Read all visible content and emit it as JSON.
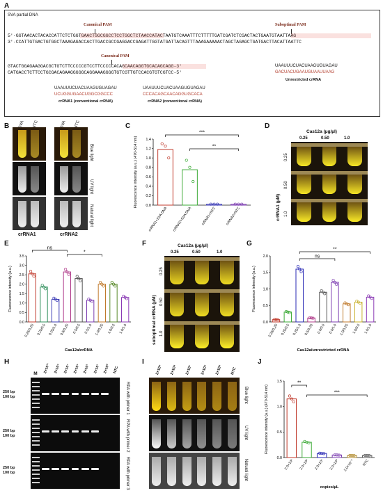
{
  "panels": {
    "A": {
      "label": "A",
      "title": "SVA partial DNA",
      "strand_top": "5'-GGTAACACTACACCATTCTCTGGTGAACTGGCGGCCTCCTGGCTCTAACCATACTAATGTCAAATTTCTTTTTGATCGATCTCGACTACTGAATGTAATTAAG",
      "strand_bottom": "3'-CCATTGTGACTGTGGCTAAAGAGACCACTTGACCGCCGAGGACCGAGATTGGTATGATTACAGTTTAAAGAAAAACTAGCTAGAGCTGATGACTTACATTAATTC",
      "strand2_top": "GTACTGGAGAAGGACGCTGTCTTCCCCCGTCCTTCCCCCACAGCAACAGGTGCACAGCAGG-3'",
      "strand2_bottom": "CATGACCTCTTCCTGCGACAGAAGGGGGCAGGAAAGGGGTGTCGTTGTCCACGTGTCGTCC-5'",
      "pam_canonical": "Canonical PAM",
      "pam_suboptimal": "Suboptimal PAM",
      "crRNA1_line1": "UAAUUUCUACUAAGUGUAGAU",
      "crRNA1_line2": "UCUGGUGAACUGGCGGCCC",
      "crRNA1_caption": "crRNA1 (conventional crRNA)",
      "crRNA2_line1": "UAAUUUCUACUAAGUGUAGAU",
      "crRNA2_line2": "CCCACAGCAACAGGUGCACA",
      "crRNA2_caption": "crRNA2 (conventional crRNA)",
      "unres_line1": "UAAUUUCUACUAAGUGUAGAU",
      "unres_line2": "GACUACUGAAUGUAAUUAAG",
      "unres_caption": "Unrestricted crRNA"
    },
    "B": {
      "label": "B",
      "tube_labels": [
        "SVA",
        "NTC",
        "SVA",
        "NTC"
      ],
      "light_labels": [
        "Blue light",
        "UV light",
        "Natural light"
      ],
      "group_labels": [
        "crRNA1",
        "crRNA2"
      ]
    },
    "C": {
      "label": "C",
      "sig_top": "***",
      "sig_mid": "**"
    },
    "D": {
      "label": "D",
      "header": "Cas12a  (µg/µl)",
      "cols": [
        "0.25",
        "0.50",
        "1.0"
      ],
      "side": "crRNA1 (µM)",
      "rows": [
        "0.25",
        "0.50",
        "1.0"
      ]
    },
    "E": {
      "label": "E",
      "sig_ns": "ns",
      "sig_star": "*"
    },
    "F": {
      "label": "F",
      "header": "Cas12a  (µg/µl)",
      "cols": [
        "0.25",
        "0.50",
        "1.0"
      ],
      "side": "suboptimal crRNA (µM)",
      "rows": [
        "0.25",
        "0.50",
        "1.0"
      ]
    },
    "G": {
      "label": "G",
      "sig_ns": "ns",
      "sig_star": "**"
    },
    "H": {
      "label": "H",
      "marker": "M",
      "lanes": [
        "2×10¹¹",
        "2×10⁹",
        "2×10⁷",
        "2×10⁵",
        "2×10³",
        "2×10¹",
        "2×10⁰",
        "NTC"
      ],
      "bp250": "250 bp",
      "bp100": "100 bp",
      "row_labels": [
        "RPA with primer 1",
        "RPA with primer 2",
        "RPA with primer 3"
      ]
    },
    "I": {
      "label": "I",
      "lanes": [
        "2×10⁹",
        "2×10⁸",
        "2×10⁷",
        "2×10⁶",
        "2×10⁵",
        "NTC"
      ],
      "light_labels": [
        "Blue light",
        "UV light",
        "Natural light"
      ]
    },
    "J": {
      "label": "J",
      "sig_a": "**",
      "sig_b": "***"
    }
  },
  "chart_data": [
    {
      "panel": "C",
      "type": "bar",
      "categories": [
        "crRNA1+SVA DNA",
        "crRNA2+SVA DNA",
        "crRNA1+NTC",
        "crRNA2+NTC"
      ],
      "values": [
        1.18,
        0.75,
        0.02,
        0.02
      ],
      "points": [
        [
          1.3,
          1.25,
          1.0
        ],
        [
          0.95,
          0.8,
          0.5
        ],
        [
          0.02,
          0.02,
          0.02
        ],
        [
          0.02,
          0.02,
          0.02
        ]
      ],
      "colors": [
        "#c0392b",
        "#3aa935",
        "#3b3bb5",
        "#7b3bb0"
      ],
      "ylabel": "Fluorescence intensity (a.u.) (470-514 nm)",
      "yticks": [
        "0.0",
        "0.2",
        "0.4",
        "0.6",
        "0.8",
        "1.0",
        "1.2",
        "1.4"
      ],
      "ylim": [
        0,
        1.4
      ]
    },
    {
      "panel": "E",
      "type": "bar",
      "categories": [
        "0.25/0.25",
        "0.25/0.5",
        "0.25/1.0",
        "0.5/0.25",
        "0.5/0.5",
        "0.5/1.0",
        "1.0/0.25",
        "1.0/0.5",
        "1.0/1.0"
      ],
      "values": [
        2.55,
        1.85,
        1.2,
        2.65,
        2.3,
        1.15,
        2.0,
        2.0,
        1.3
      ],
      "colors": [
        "#c0392b",
        "#2f8f5b",
        "#3b3bb5",
        "#b03b8a",
        "#555555",
        "#7b3bb0",
        "#c07a2b",
        "#5a8a2b",
        "#8b3bb5"
      ],
      "xlabel": "Cas12a/crRNA",
      "ylabel": "Fluorescence intensity (a.u.)",
      "yticks": [
        "0.0",
        "0.5",
        "1.0",
        "1.5",
        "2.0",
        "2.5",
        "3.0",
        "3.5"
      ],
      "ylim": [
        0,
        3.5
      ]
    },
    {
      "panel": "G",
      "type": "bar",
      "categories": [
        "0.25/0.25",
        "0.25/0.5",
        "0.25/1.0",
        "0.5/0.25",
        "0.5/0.5",
        "0.5/1.0",
        "1.0/0.25",
        "1.0/0.5",
        "1.0/1.0"
      ],
      "values": [
        0.07,
        0.3,
        1.6,
        0.12,
        0.9,
        1.2,
        0.55,
        0.6,
        0.75
      ],
      "colors": [
        "#c0392b",
        "#3aa935",
        "#2a2ab5",
        "#b03b8a",
        "#555555",
        "#7b3bb0",
        "#c07a2b",
        "#c8b02b",
        "#8b3bb5"
      ],
      "xlabel": "Cas12a/unrestricted crRNA",
      "ylabel": "Fluorescence intensity (a.u.)",
      "yticks": [
        "0.0",
        "0.5",
        "1.0",
        "1.5",
        "2.0"
      ],
      "ylim": [
        0,
        2.0
      ]
    },
    {
      "panel": "J",
      "type": "bar",
      "categories": [
        "2.0×10³",
        "2.0×10²",
        "2.0×10¹",
        "2.0×10⁰",
        "2.0×10⁻¹",
        "NTC"
      ],
      "values": [
        1.15,
        0.3,
        0.08,
        0.05,
        0.04,
        0.04
      ],
      "colors": [
        "#c0392b",
        "#3aa935",
        "#2a2ab5",
        "#7b3bb0",
        "#b08a2b",
        "#555555"
      ],
      "xlabel": "copies/µL",
      "ylabel": "Fluorescence intensity (a.u.) (470-514 nm)",
      "yticks": [
        "0.0",
        "0.5",
        "1.0",
        "1.5"
      ],
      "ylim": [
        0,
        1.5
      ]
    }
  ]
}
